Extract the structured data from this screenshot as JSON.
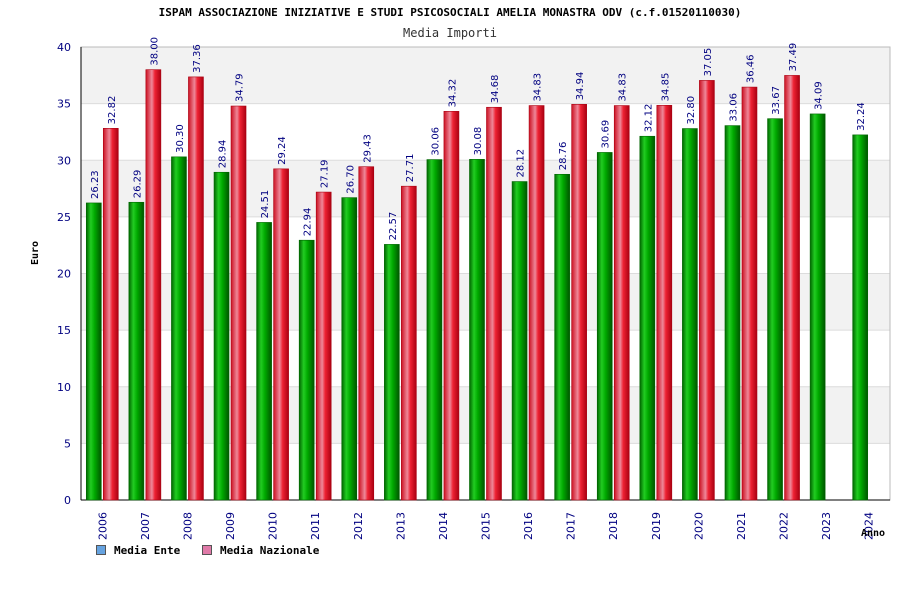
{
  "chart_data": {
    "type": "bar",
    "title": "ISPAM ASSOCIAZIONE INIZIATIVE E STUDI PSICOSOCIALI AMELIA MONASTRA ODV (c.f.01520110030)",
    "subtitle": "Media Importi",
    "xlabel": "Anno",
    "ylabel": "Euro",
    "ylim": [
      0,
      40
    ],
    "yticks": [
      0,
      5,
      10,
      15,
      20,
      25,
      30,
      35,
      40
    ],
    "categories": [
      "2006",
      "2007",
      "2008",
      "2009",
      "2010",
      "2011",
      "2012",
      "2013",
      "2014",
      "2015",
      "2016",
      "2017",
      "2018",
      "2019",
      "2020",
      "2021",
      "2022",
      "2023",
      "2024"
    ],
    "series": [
      {
        "name": "Media Ente",
        "color": "#00aa00",
        "legend_color": "#66a3e0",
        "values": [
          26.23,
          26.29,
          30.3,
          28.94,
          24.51,
          22.94,
          26.7,
          22.57,
          30.06,
          30.08,
          28.12,
          28.76,
          30.69,
          32.12,
          32.8,
          33.06,
          33.67,
          34.09,
          32.24
        ],
        "labels": [
          "26.23",
          "26.29",
          "30.30",
          "28.94",
          "24.51",
          "22.94",
          "26.70",
          "22.57",
          "30.06",
          "30.08",
          "28.12",
          "28.76",
          "30.69",
          "32.12",
          "32.80",
          "33.06",
          "33.67",
          "34.09",
          "32.24"
        ]
      },
      {
        "name": "Media Nazionale",
        "color": "#ee2233",
        "legend_color": "#e07aa8",
        "values": [
          32.82,
          38.0,
          37.36,
          34.79,
          29.24,
          27.19,
          29.43,
          27.71,
          34.32,
          34.68,
          34.83,
          34.94,
          34.83,
          34.85,
          37.05,
          36.46,
          37.49,
          null,
          null
        ],
        "labels": [
          "32.82",
          "38.00",
          "37.36",
          "34.79",
          "29.24",
          "27.19",
          "29.43",
          "27.71",
          "34.32",
          "34.68",
          "34.83",
          "34.94",
          "34.83",
          "34.85",
          "37.05",
          "36.46",
          "37.49",
          null,
          null
        ]
      }
    ],
    "grid": true,
    "legend": "bottom-left"
  }
}
